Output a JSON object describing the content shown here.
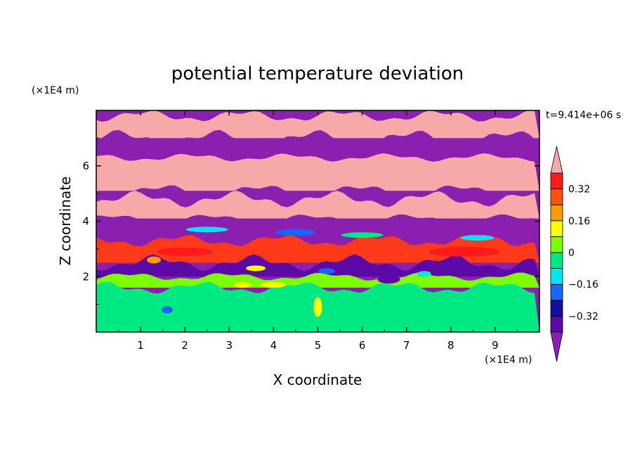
{
  "chart_data": {
    "type": "heatmap",
    "title": "potential temperature deviation",
    "xlabel": "X coordinate",
    "ylabel": "Z coordinate",
    "x_unit_label": "(×1E4 m)",
    "y_unit_label": "(×1E4 m)",
    "time_label": "t=9.414e+06 s",
    "xlim": [
      0,
      10
    ],
    "ylim": [
      0,
      8
    ],
    "x_ticks": [
      "1",
      "2",
      "3",
      "4",
      "5",
      "6",
      "7",
      "8",
      "9"
    ],
    "y_ticks": [
      "2",
      "4",
      "6"
    ],
    "x_tick_values": [
      1,
      2,
      3,
      4,
      5,
      6,
      7,
      8,
      9
    ],
    "y_tick_values": [
      2,
      4,
      6
    ],
    "colorbar": {
      "levels": [
        -0.4,
        -0.32,
        -0.24,
        -0.16,
        -0.08,
        0,
        0.08,
        0.16,
        0.24,
        0.32,
        0.4
      ],
      "labels": [
        "0.32",
        "0.16",
        "0",
        "−0.16",
        "−0.32"
      ],
      "label_values": [
        0.32,
        0.16,
        0,
        -0.16,
        -0.32
      ],
      "under_color": "#8a1fb0",
      "over_color": "#f7a8a8",
      "colors": [
        "#5b0aa8",
        "#1010a0",
        "#1a64ff",
        "#00e6f0",
        "#00e882",
        "#7cff00",
        "#ffff00",
        "#ff9a00",
        "#ff5010",
        "#ff1a1a"
      ]
    },
    "layers": [
      {
        "z_range": [
          7.8,
          8.0
        ],
        "value": -0.5,
        "color": "#8a1fb0"
      },
      {
        "z_range": [
          7.0,
          7.8
        ],
        "value": 0.45,
        "color": "#f7a8a8"
      },
      {
        "z_range": [
          6.3,
          7.0
        ],
        "value": -0.5,
        "color": "#8a1fb0"
      },
      {
        "z_range": [
          5.1,
          6.3
        ],
        "value": 0.45,
        "color": "#f7a8a8"
      },
      {
        "z_range": [
          4.8,
          5.1
        ],
        "value": -0.5,
        "color": "#8a1fb0"
      },
      {
        "z_range": [
          4.1,
          4.8
        ],
        "value": 0.45,
        "color": "#f7a8a8"
      },
      {
        "z_range": [
          3.3,
          4.1
        ],
        "value": -0.5,
        "color": "#8a1fb0"
      },
      {
        "z_range": [
          2.5,
          3.3
        ],
        "value": 0.36,
        "color": "#ff3a1a"
      },
      {
        "z_range": [
          2.0,
          2.5
        ],
        "value": -0.45,
        "color": "#5b0aa8"
      },
      {
        "z_range": [
          1.6,
          2.0
        ],
        "value": 0.1,
        "color": "#7cff00"
      },
      {
        "z_range": [
          0.0,
          1.6
        ],
        "value": 0.02,
        "color": "#00e882"
      }
    ]
  }
}
